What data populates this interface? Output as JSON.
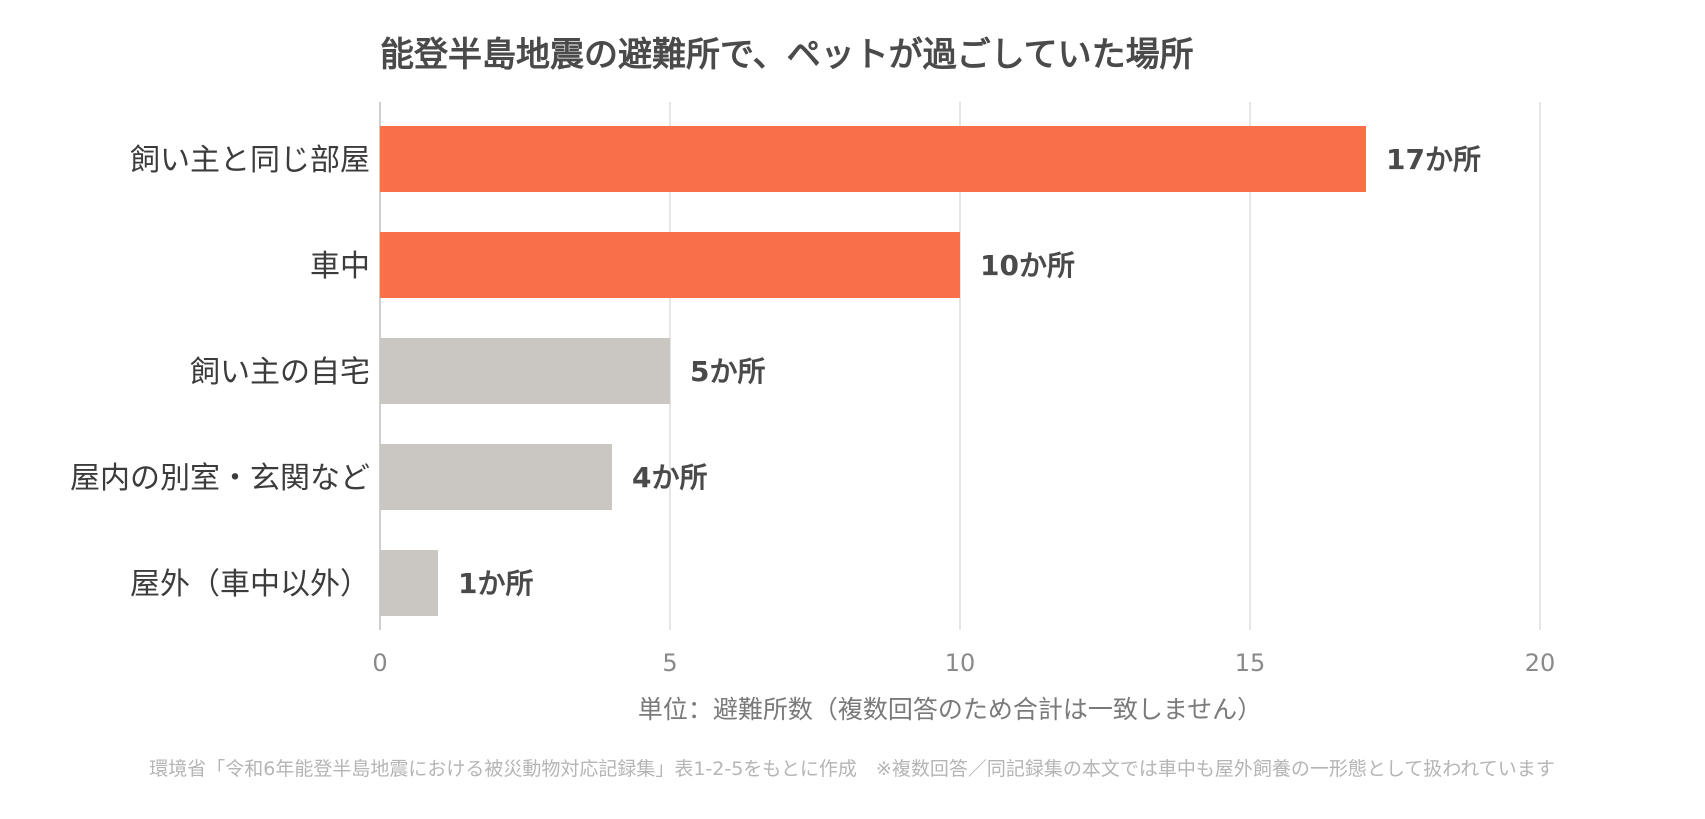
{
  "chart_data": {
    "type": "bar",
    "orientation": "horizontal",
    "title": "能登半島地震の避難所で、ペットが過ごしていた場所",
    "categories": [
      "飼い主と同じ部屋",
      "車中",
      "飼い主の自宅",
      "屋内の別室・玄関など",
      "屋外（車中以外）"
    ],
    "values": [
      17,
      10,
      5,
      4,
      1
    ],
    "value_labels": [
      "17か所",
      "10か所",
      "5か所",
      "4か所",
      "1か所"
    ],
    "bar_colors": [
      "#F86F4A",
      "#F86F4A",
      "#CAC6C2",
      "#CAC6C2",
      "#CAC6C2"
    ],
    "xlim": [
      0,
      20
    ],
    "xticks": [
      0,
      5,
      10,
      15,
      20
    ],
    "xtick_labels": [
      "0",
      "5",
      "10",
      "15",
      "20"
    ],
    "xlabel": "単位：避難所数（複数回答のため合計は一致しません）",
    "grid": true,
    "source": "環境省「令和6年能登半島地震における被災動物対応記録集」表1-2-5をもとに作成　※複数回答／同記録集の本文では車中も屋外飼養の一形態として扱われています"
  }
}
